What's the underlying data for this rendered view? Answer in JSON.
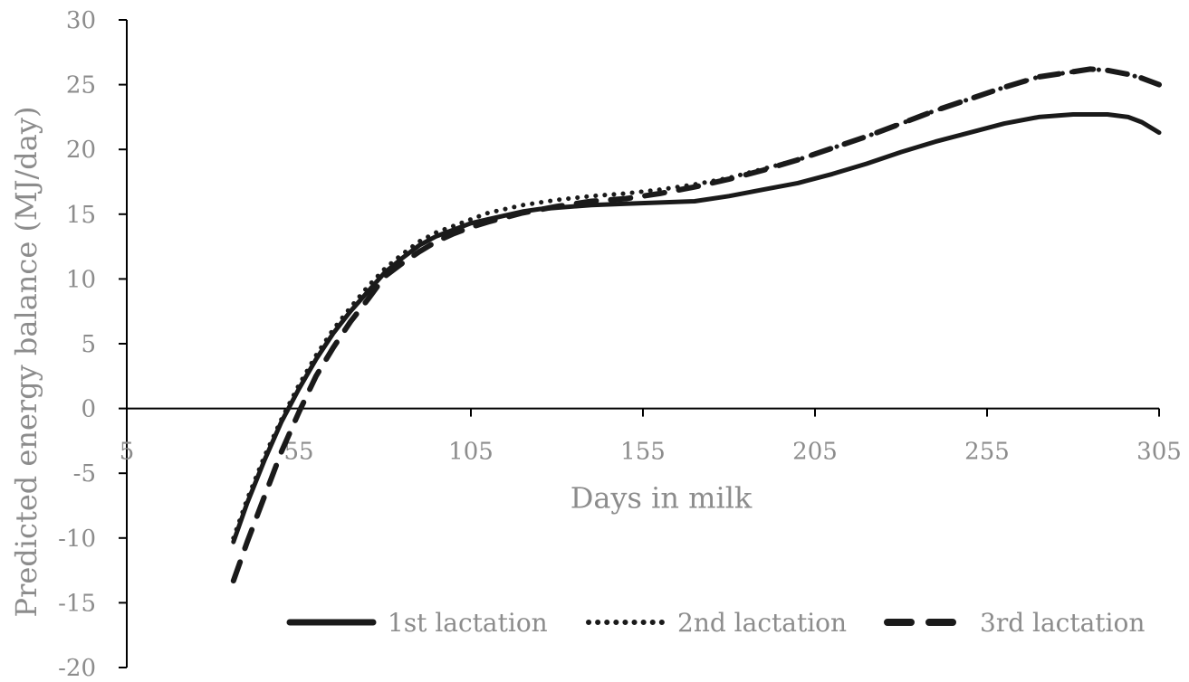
{
  "chart_data": {
    "type": "line",
    "title": "",
    "xlabel": "Days in milk",
    "ylabel": "Predicted energy balance (MJ/day)",
    "xlim": [
      5,
      305
    ],
    "ylim": [
      -20,
      30
    ],
    "x_ticks": [
      5,
      55,
      105,
      155,
      205,
      255,
      305
    ],
    "x_tick_labels": [
      "5",
      "55",
      "105",
      "155",
      "205",
      "255",
      "305"
    ],
    "y_ticks": [
      -20,
      -15,
      -10,
      -5,
      0,
      5,
      10,
      15,
      20,
      25,
      30
    ],
    "y_tick_labels": [
      "-20",
      "-15",
      "-10",
      "-5",
      "0",
      "5",
      "10",
      "15",
      "20",
      "25",
      "30"
    ],
    "grid": false,
    "legend_position": "bottom-right",
    "colors": {
      "series": "#1a1a1a",
      "axis": "#000000",
      "text": "#8c8c8c"
    },
    "series": [
      {
        "name": "1st lactation",
        "style": "solid",
        "x": [
          36,
          40,
          45,
          50,
          55,
          60,
          65,
          70,
          75,
          80,
          85,
          90,
          95,
          100,
          105,
          110,
          115,
          120,
          125,
          130,
          140,
          150,
          160,
          170,
          180,
          190,
          200,
          210,
          220,
          230,
          240,
          250,
          260,
          270,
          280,
          290,
          296,
          300,
          305
        ],
        "y": [
          -10.3,
          -7.3,
          -4,
          -1,
          1.5,
          3.8,
          5.8,
          7.5,
          9,
          10.5,
          11.6,
          12.6,
          13.3,
          13.8,
          14.3,
          14.6,
          14.9,
          15.2,
          15.4,
          15.5,
          15.7,
          15.8,
          15.9,
          16,
          16.4,
          16.9,
          17.4,
          18.1,
          18.9,
          19.8,
          20.6,
          21.3,
          22,
          22.5,
          22.7,
          22.7,
          22.5,
          22.1,
          21.3
        ]
      },
      {
        "name": "2nd lactation",
        "style": "dotted",
        "x": [
          36,
          40,
          45,
          50,
          55,
          60,
          65,
          70,
          75,
          80,
          85,
          90,
          95,
          100,
          105,
          110,
          120,
          130,
          140,
          150,
          160,
          170,
          180,
          190,
          200,
          210,
          220,
          230,
          240,
          250,
          260,
          270,
          280,
          285,
          290,
          296,
          300,
          305
        ],
        "y": [
          -10,
          -7,
          -3.7,
          -0.8,
          1.8,
          4.1,
          6.1,
          7.8,
          9.4,
          10.8,
          11.9,
          12.9,
          13.6,
          14.1,
          14.6,
          15.1,
          15.7,
          16.1,
          16.4,
          16.6,
          16.9,
          17.3,
          17.8,
          18.5,
          19.2,
          20.1,
          21,
          22,
          23,
          23.9,
          24.8,
          25.6,
          26,
          26.2,
          26.1,
          25.8,
          25.5,
          25
        ]
      },
      {
        "name": "3rd lactation",
        "style": "dashed",
        "x": [
          36,
          40,
          45,
          50,
          55,
          60,
          65,
          70,
          75,
          80,
          85,
          90,
          95,
          100,
          105,
          110,
          120,
          130,
          140,
          150,
          160,
          170,
          180,
          190,
          200,
          210,
          220,
          230,
          240,
          250,
          260,
          270,
          280,
          285,
          290,
          296,
          300,
          305
        ],
        "y": [
          -13.3,
          -10.3,
          -6.8,
          -3.3,
          -0.3,
          2.5,
          4.7,
          6.7,
          8.4,
          10.2,
          11.2,
          12.1,
          12.9,
          13.5,
          14,
          14.4,
          15.1,
          15.6,
          16,
          16.2,
          16.6,
          17.1,
          17.7,
          18.4,
          19.2,
          20.1,
          21,
          22,
          23,
          23.9,
          24.8,
          25.6,
          26,
          26.2,
          26.1,
          25.8,
          25.5,
          25
        ]
      }
    ]
  }
}
